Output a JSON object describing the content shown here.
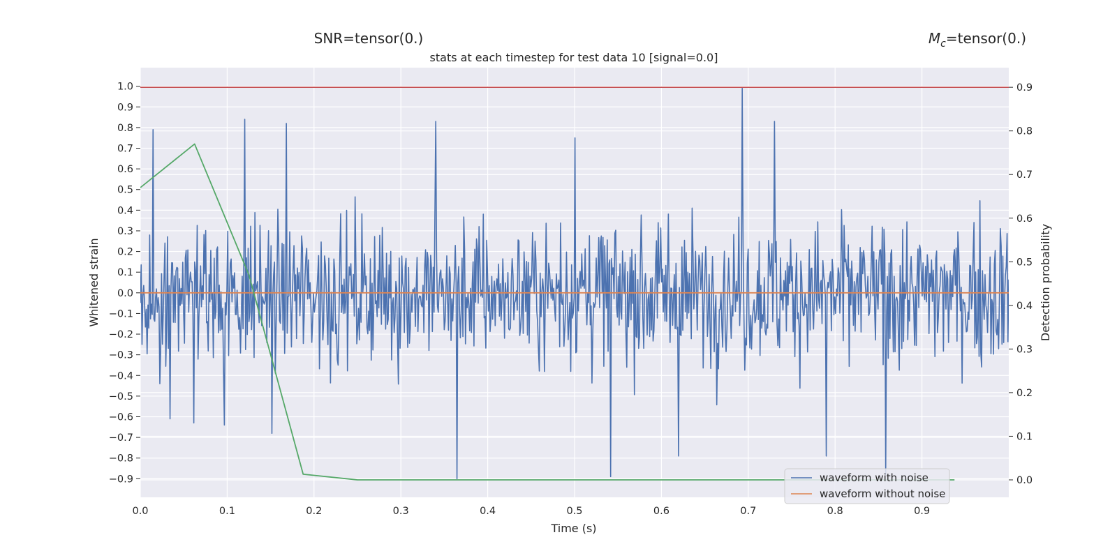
{
  "figure": {
    "snr_text": "SNR=tensor(0.)",
    "mc_symbol": "M",
    "mc_subscript": "c",
    "mc_value": "=tensor(0.)"
  },
  "chart_data": {
    "type": "line",
    "title": "stats at each timestep for test data 10 [signal=0.0]",
    "xlabel": "Time (s)",
    "ylabel": "Whitened strain",
    "y2label": "Detection probability",
    "xlim": [
      0.0,
      1.0
    ],
    "ylim": [
      -0.99,
      1.09
    ],
    "y2lim": [
      -0.04,
      0.945
    ],
    "grid": true,
    "legend_position": "lower right",
    "xticks": [
      0.0,
      0.1,
      0.2,
      0.3,
      0.4,
      0.5,
      0.6,
      0.7,
      0.8,
      0.9
    ],
    "xtick_labels": [
      "0.0",
      "0.1",
      "0.2",
      "0.3",
      "0.4",
      "0.5",
      "0.6",
      "0.7",
      "0.8",
      "0.9"
    ],
    "yticks": [
      1.0,
      0.9,
      0.8,
      0.7,
      0.6,
      0.5,
      0.4,
      0.3,
      0.2,
      0.1,
      0.0,
      -0.1,
      -0.2,
      -0.3,
      -0.4,
      -0.5,
      -0.6,
      -0.7,
      -0.8,
      -0.9
    ],
    "ytick_labels": [
      "1.0",
      "0.9",
      "0.8",
      "0.7",
      "0.6",
      "0.5",
      "0.4",
      "0.3",
      "0.2",
      "0.1",
      "0.0",
      "−0.1",
      "−0.2",
      "−0.3",
      "−0.4",
      "−0.5",
      "−0.6",
      "−0.7",
      "−0.8",
      "−0.9"
    ],
    "y2ticks": [
      0.9,
      0.8,
      0.7,
      0.6,
      0.5,
      0.4,
      0.3,
      0.2,
      0.1,
      0.0
    ],
    "y2tick_labels": [
      "0.9",
      "0.8",
      "0.7",
      "0.6",
      "0.5",
      "0.4",
      "0.3",
      "0.2",
      "0.1",
      "0.0"
    ],
    "series": [
      {
        "name": "waveform with noise",
        "color": "#4c72b0",
        "axis": "left",
        "n_samples": 1024,
        "x_range": [
          0.0,
          1.0
        ],
        "representative_peaks": [
          {
            "x": 0.015,
            "y": 0.79
          },
          {
            "x": 0.022,
            "y": -0.44
          },
          {
            "x": 0.034,
            "y": -0.61
          },
          {
            "x": 0.062,
            "y": -0.63
          },
          {
            "x": 0.097,
            "y": -0.64
          },
          {
            "x": 0.12,
            "y": 0.84
          },
          {
            "x": 0.152,
            "y": -0.68
          },
          {
            "x": 0.168,
            "y": 0.82
          },
          {
            "x": 0.34,
            "y": 0.83
          },
          {
            "x": 0.365,
            "y": -0.9
          },
          {
            "x": 0.5,
            "y": 0.75
          },
          {
            "x": 0.542,
            "y": -0.89
          },
          {
            "x": 0.62,
            "y": -0.79
          },
          {
            "x": 0.693,
            "y": 0.99
          },
          {
            "x": 0.73,
            "y": 0.83
          },
          {
            "x": 0.79,
            "y": -0.79
          },
          {
            "x": 0.858,
            "y": -0.88
          }
        ]
      },
      {
        "name": "waveform without noise",
        "color": "#dd8452",
        "axis": "left",
        "x": [
          0.0,
          1.0
        ],
        "y": [
          0.0,
          0.0
        ]
      },
      {
        "name": "",
        "color": "#55a868",
        "axis": "right",
        "x": [
          0.0,
          0.0625,
          0.125,
          0.1875,
          0.25,
          0.3125,
          0.375,
          0.4375,
          0.5,
          0.5625,
          0.625,
          0.6875,
          0.75,
          0.8125,
          0.875,
          0.9375
        ],
        "y": [
          0.67,
          0.77,
          0.47,
          0.013,
          0.0,
          0.0,
          0.0,
          0.0,
          0.0,
          0.0,
          0.0,
          0.0,
          0.0,
          0.0,
          0.0,
          0.0
        ]
      },
      {
        "name": "",
        "color": "#c44e52",
        "axis": "right",
        "x": [
          0.0,
          1.0
        ],
        "y": [
          0.9,
          0.9
        ]
      }
    ]
  },
  "colors": {
    "plot_background": "#eaeaf2",
    "grid": "#ffffff",
    "text": "#262626"
  }
}
